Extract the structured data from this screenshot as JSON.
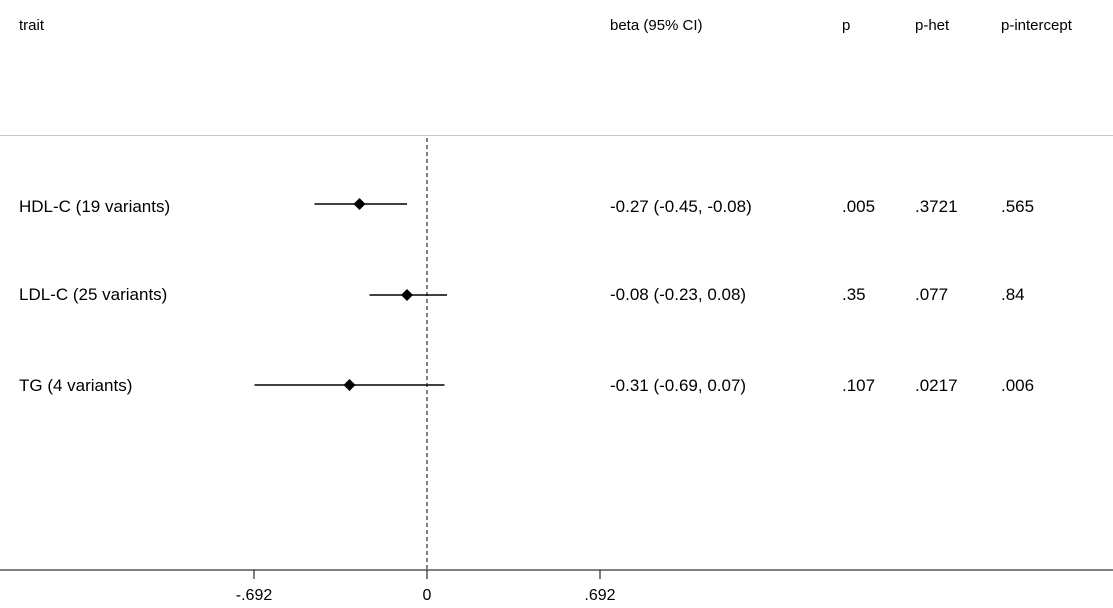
{
  "headers": {
    "trait": "trait",
    "beta": "beta (95% CI)",
    "p": "p",
    "p_het": "p-het",
    "p_intercept": "p-intercept"
  },
  "rows": [
    {
      "trait": "HDL-C (19 variants)",
      "beta_ci": "-0.27 (-0.45, -0.08)",
      "p": ".005",
      "p_het": ".3721",
      "p_intercept": ".565"
    },
    {
      "trait": "LDL-C (25 variants)",
      "beta_ci": "-0.08 (-0.23, 0.08)",
      "p": ".35",
      "p_het": ".077",
      "p_intercept": ".84"
    },
    {
      "trait": "TG (4 variants)",
      "beta_ci": "-0.31 (-0.69, 0.07)",
      "p": ".107",
      "p_het": ".0217",
      "p_intercept": ".006"
    }
  ],
  "chart_data": {
    "type": "forest",
    "categories": [
      "HDL-C (19 variants)",
      "LDL-C (25 variants)",
      "TG (4 variants)"
    ],
    "estimates": [
      -0.27,
      -0.08,
      -0.31
    ],
    "ci_lower": [
      -0.45,
      -0.23,
      -0.69
    ],
    "ci_upper": [
      -0.08,
      0.08,
      0.07
    ],
    "null_line": 0,
    "xticks": [
      -0.692,
      0,
      0.692
    ],
    "xtick_labels": [
      "-.692",
      "0",
      ".692"
    ],
    "xlim": [
      -1.0,
      1.0
    ]
  }
}
